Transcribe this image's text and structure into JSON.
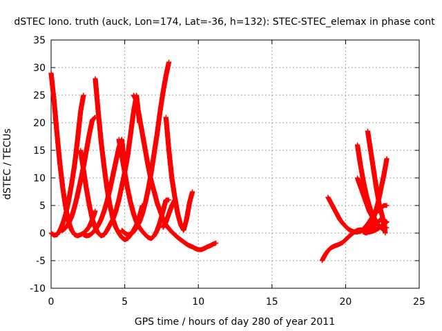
{
  "chart_data": {
    "type": "scatter",
    "title": "dSTEC Iono. truth (auck, Lon=174, Lat=-36, h=132): STEC-STEC_elemax in phase cont",
    "xlabel": "GPS time / hours of day 280 of year 2011",
    "ylabel": "dSTEC  / TECUs",
    "xlim": [
      0,
      25
    ],
    "ylim": [
      -10,
      35
    ],
    "xticks": [
      0,
      5,
      10,
      15,
      20,
      25
    ],
    "yticks": [
      -10,
      -5,
      0,
      5,
      10,
      15,
      20,
      25,
      30,
      35
    ],
    "grid": true,
    "marker": "+",
    "color": "#ff0000",
    "series": [
      {
        "x": [
          0.0,
          0.2,
          0.4,
          0.6,
          0.8,
          1.0,
          1.2,
          1.4,
          1.6,
          1.8,
          2.0,
          2.2,
          2.4,
          2.6,
          2.8,
          3.0
        ],
        "values": [
          29.0,
          24.0,
          18.0,
          12.5,
          8.0,
          4.5,
          2.0,
          0.5,
          -0.3,
          -0.5,
          -0.3,
          0.0,
          0.5,
          1.2,
          2.5,
          4.0
        ]
      },
      {
        "x": [
          0.0,
          0.2,
          0.4,
          0.6,
          0.8,
          1.0,
          1.2,
          1.4,
          1.6,
          1.8,
          2.0,
          2.2
        ],
        "values": [
          0.0,
          -0.4,
          -0.3,
          0.5,
          1.8,
          3.5,
          6.0,
          9.0,
          12.5,
          17.0,
          22.0,
          25.0
        ]
      },
      {
        "x": [
          2.0,
          2.2,
          2.4,
          2.6,
          2.8,
          3.0,
          3.2,
          3.4,
          3.6,
          3.8,
          4.0,
          4.2,
          4.4,
          4.6,
          4.8,
          5.0,
          5.2,
          5.4,
          5.6,
          5.8,
          6.0
        ],
        "values": [
          15.0,
          11.5,
          8.0,
          5.0,
          2.5,
          1.0,
          0.0,
          -0.5,
          -0.3,
          0.5,
          1.5,
          2.5,
          4.0,
          6.0,
          8.5,
          11.0,
          14.0,
          18.0,
          22.0,
          25.0,
          20.0
        ]
      },
      {
        "x": [
          0.6,
          0.8,
          1.0,
          1.2,
          1.4,
          1.6,
          1.8,
          2.0,
          2.2,
          2.4,
          2.6,
          2.8,
          3.0
        ],
        "values": [
          0.5,
          0.5,
          1.0,
          1.8,
          3.0,
          4.8,
          7.0,
          9.5,
          12.0,
          15.0,
          18.0,
          20.5,
          21.0
        ]
      },
      {
        "x": [
          3.0,
          3.2,
          3.4,
          3.6,
          3.8,
          4.0,
          4.2,
          4.4,
          4.6,
          4.8,
          5.0,
          5.2,
          5.4,
          5.6,
          5.8,
          6.0,
          6.2
        ],
        "values": [
          28.0,
          22.0,
          16.5,
          12.0,
          8.0,
          5.0,
          2.5,
          1.0,
          0.0,
          -0.8,
          -1.2,
          -1.0,
          -0.3,
          0.5,
          1.5,
          3.0,
          5.0
        ]
      },
      {
        "x": [
          2.2,
          2.4,
          2.6,
          2.8,
          3.0,
          3.2,
          3.4,
          3.6,
          3.8,
          4.0,
          4.2,
          4.4,
          4.6,
          4.8,
          5.0
        ],
        "values": [
          -0.3,
          -0.5,
          -0.4,
          0.0,
          0.6,
          1.4,
          2.5,
          4.0,
          5.8,
          8.0,
          10.5,
          13.0,
          15.5,
          17.0,
          12.0
        ]
      },
      {
        "x": [
          4.6,
          4.8,
          5.0,
          5.2,
          5.4,
          5.6,
          5.8,
          6.0,
          6.2,
          6.4,
          6.6,
          6.8,
          7.0,
          7.2,
          7.4,
          7.6,
          7.8,
          8.0
        ],
        "values": [
          17.0,
          14.0,
          11.0,
          8.0,
          5.5,
          3.5,
          2.0,
          1.0,
          0.3,
          -0.3,
          -0.8,
          -1.0,
          -0.5,
          0.5,
          2.0,
          4.0,
          6.0,
          6.0
        ]
      },
      {
        "x": [
          5.6,
          5.8,
          6.0,
          6.2,
          6.4,
          6.6,
          6.8,
          7.0,
          7.2,
          7.4,
          7.6,
          7.8,
          8.0,
          8.2,
          8.4,
          8.6,
          8.8,
          9.0,
          9.2,
          9.4,
          9.6,
          9.8,
          10.0,
          10.2,
          10.4,
          10.6,
          10.8,
          11.0,
          11.2
        ],
        "values": [
          25.0,
          24.0,
          21.0,
          18.0,
          15.0,
          12.0,
          9.5,
          7.5,
          5.5,
          4.0,
          2.5,
          1.5,
          0.8,
          0.2,
          -0.3,
          -0.8,
          -1.2,
          -1.6,
          -2.0,
          -2.3,
          -2.5,
          -2.8,
          -3.0,
          -3.0,
          -2.8,
          -2.5,
          -2.3,
          -2.0,
          -1.8
        ]
      },
      {
        "x": [
          4.8,
          5.0,
          5.2,
          5.4,
          5.6,
          5.8,
          6.0,
          6.2,
          6.4,
          6.6,
          6.8,
          7.0,
          7.2,
          7.4,
          7.6,
          7.8,
          8.0
        ],
        "values": [
          0.5,
          0.0,
          -0.3,
          -0.2,
          0.2,
          1.0,
          2.0,
          3.5,
          5.5,
          8.0,
          11.0,
          14.5,
          18.0,
          22.0,
          25.5,
          28.5,
          31.0
        ]
      },
      {
        "x": [
          7.8,
          8.0,
          8.2,
          8.4,
          8.6,
          8.8,
          9.0,
          9.2,
          9.4,
          9.6
        ],
        "values": [
          21.0,
          15.0,
          10.0,
          6.5,
          3.5,
          1.5,
          0.5,
          2.5,
          5.5,
          7.5
        ]
      },
      {
        "x": [
          7.6,
          7.8,
          8.0,
          8.2,
          8.4
        ],
        "values": [
          1.0,
          2.0,
          3.5,
          5.0,
          6.0
        ]
      },
      {
        "x": [
          18.4,
          18.6,
          18.8,
          19.0,
          19.2,
          19.4,
          19.6,
          19.8,
          20.0,
          20.2,
          20.4,
          20.6,
          20.8,
          21.0,
          21.2,
          21.4,
          21.6,
          21.8,
          22.0,
          22.2,
          22.4,
          22.6,
          22.8
        ],
        "values": [
          -5.0,
          -4.0,
          -3.2,
          -2.7,
          -2.4,
          -2.2,
          -2.0,
          -1.7,
          -1.2,
          -0.7,
          -0.2,
          0.2,
          0.5,
          0.6,
          0.5,
          0.3,
          0.2,
          0.3,
          0.5,
          0.8,
          1.2,
          1.6,
          2.0
        ]
      },
      {
        "x": [
          18.8,
          19.0,
          19.2,
          19.4,
          19.6,
          19.8,
          20.0,
          20.2,
          20.4,
          20.6,
          20.8,
          21.0,
          21.2,
          21.4,
          21.6,
          21.8,
          22.0,
          22.2,
          22.4,
          22.6,
          22.8
        ],
        "values": [
          6.5,
          5.5,
          4.5,
          3.5,
          2.5,
          1.8,
          1.2,
          0.7,
          0.4,
          0.2,
          0.2,
          0.3,
          0.7,
          1.3,
          2.0,
          2.8,
          3.5,
          4.0,
          4.5,
          5.0,
          5.0
        ]
      },
      {
        "x": [
          20.8,
          21.0,
          21.2,
          21.4,
          21.6,
          21.8,
          22.0,
          22.2,
          22.4,
          22.6
        ],
        "values": [
          16.0,
          12.5,
          9.5,
          7.0,
          5.0,
          3.5,
          2.5,
          1.5,
          1.0,
          0.5
        ]
      },
      {
        "x": [
          21.5,
          21.7,
          21.9,
          22.1,
          22.3,
          22.5,
          22.7
        ],
        "values": [
          18.5,
          15.0,
          11.5,
          8.0,
          5.0,
          3.0,
          0.0
        ]
      },
      {
        "x": [
          20.8,
          21.0,
          21.2,
          21.4,
          21.6,
          21.8,
          22.0,
          22.2,
          22.4,
          22.6,
          22.8
        ],
        "values": [
          10.0,
          8.5,
          7.0,
          5.5,
          4.0,
          3.0,
          2.0,
          1.5,
          1.0,
          0.8,
          1.0
        ]
      },
      {
        "x": [
          21.4,
          21.6,
          21.8,
          22.0,
          22.2,
          22.4,
          22.6,
          22.8
        ],
        "values": [
          0.5,
          1.0,
          2.0,
          3.5,
          5.5,
          8.0,
          10.5,
          13.5
        ]
      },
      {
        "x": [
          21.2,
          21.4,
          21.6,
          21.8,
          22.0,
          22.2,
          22.4,
          22.6,
          22.8
        ],
        "values": [
          0.2,
          0.0,
          0.3,
          0.8,
          1.5,
          2.0,
          2.5,
          2.3,
          2.0
        ]
      }
    ]
  }
}
